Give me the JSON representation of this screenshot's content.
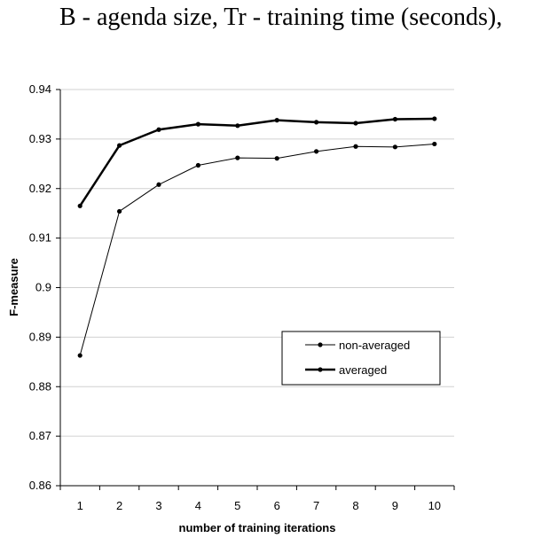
{
  "caption": "B - agenda size, Tr - training time (seconds),",
  "chart_data": {
    "type": "line",
    "xlabel": "number of training iterations",
    "ylabel": "F-measure",
    "categories": [
      "1",
      "2",
      "3",
      "4",
      "5",
      "6",
      "7",
      "8",
      "9",
      "10"
    ],
    "ylim": [
      0.86,
      0.94
    ],
    "yticks": [
      "0.86",
      "0.87",
      "0.88",
      "0.89",
      "0.9",
      "0.91",
      "0.92",
      "0.93",
      "0.94"
    ],
    "grid": true,
    "legend_position": "right-middle",
    "series": [
      {
        "name": "non-averaged",
        "values": [
          0.8863,
          0.9154,
          0.9208,
          0.9247,
          0.9262,
          0.9261,
          0.9275,
          0.9285,
          0.9284,
          0.929
        ],
        "stroke_color": "#000000",
        "weight": "thin"
      },
      {
        "name": "averaged",
        "values": [
          0.9165,
          0.9287,
          0.9319,
          0.933,
          0.9327,
          0.9338,
          0.9334,
          0.9332,
          0.934,
          0.9341
        ],
        "stroke_color": "#000000",
        "weight": "thick"
      }
    ]
  }
}
